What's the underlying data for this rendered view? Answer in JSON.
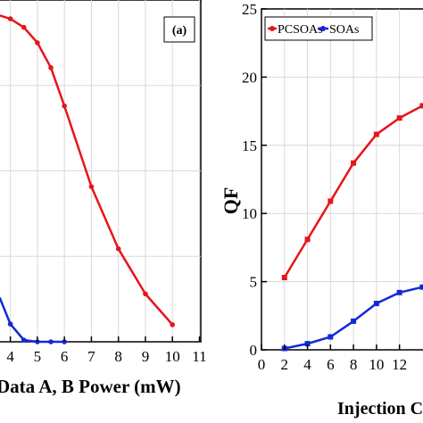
{
  "chart_data": [
    {
      "type": "line",
      "panel_label": "(a)",
      "xlabel": "Data A, B  Power (mW)",
      "x_ticks": [
        "4",
        "5",
        "6",
        "7",
        "8",
        "9",
        "10",
        "11"
      ],
      "xlim": [
        3.55,
        11.05
      ],
      "ylim": [
        0,
        1
      ],
      "grid": true,
      "series": [
        {
          "color": "#e8141b",
          "x": [
            3.6,
            4,
            4.5,
            5,
            5.5,
            6,
            7,
            8,
            9,
            10
          ],
          "y": [
            0.955,
            0.945,
            0.92,
            0.875,
            0.802,
            0.69,
            0.454,
            0.272,
            0.14,
            0.05
          ]
        },
        {
          "color": "#1228d8",
          "x": [
            3.6,
            4,
            4.5,
            5,
            5.5,
            6
          ],
          "y": [
            0.13,
            0.052,
            0.005,
            0.0,
            0.0,
            0.0
          ]
        }
      ]
    },
    {
      "type": "line",
      "xlabel": "Injection Cu",
      "ylabel": "QF",
      "x_ticks": [
        "0",
        "2",
        "4",
        "6",
        "8",
        "10",
        "12"
      ],
      "y_ticks": [
        "0",
        "5",
        "10",
        "15",
        "20",
        "25"
      ],
      "xlim": [
        0,
        14.2
      ],
      "ylim": [
        0,
        25
      ],
      "grid": true,
      "legend": {
        "placement": "top-left",
        "entries": [
          {
            "label": "PCSOAs",
            "color": "#e8141b"
          },
          {
            "label": "SOAs",
            "color": "#1228d8"
          }
        ]
      },
      "series": [
        {
          "name": "PCSOAs",
          "color": "#e8141b",
          "x": [
            2,
            4,
            6,
            8,
            10,
            12,
            14
          ],
          "y": [
            5.3,
            8.1,
            10.9,
            13.7,
            15.8,
            17.0,
            17.9
          ]
        },
        {
          "name": "SOAs",
          "color": "#1228d8",
          "x": [
            2,
            4,
            6,
            8,
            10,
            12,
            14
          ],
          "y": [
            0.1,
            0.45,
            0.95,
            2.1,
            3.4,
            4.2,
            4.6
          ]
        }
      ]
    }
  ]
}
